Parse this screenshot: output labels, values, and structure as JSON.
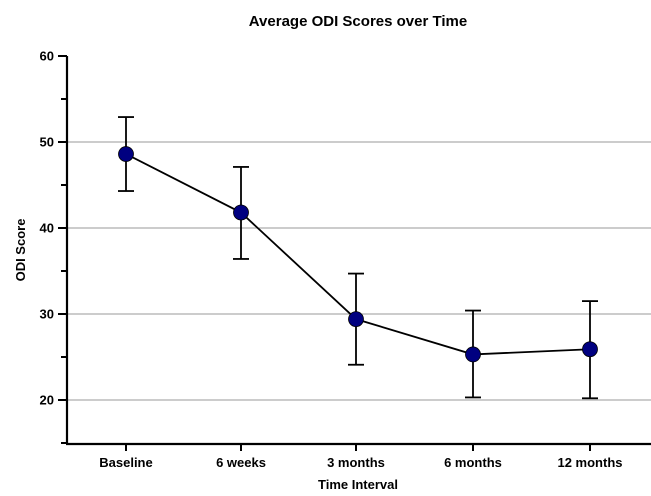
{
  "chart_data": {
    "type": "line",
    "title": "Average ODI Scores over Time",
    "xlabel": "Time Interval",
    "ylabel": "ODI Score",
    "categories": [
      "Baseline",
      "6 weeks",
      "3 months",
      "6 months",
      "12 months"
    ],
    "series": [
      {
        "values": [
          48.6,
          41.8,
          29.4,
          25.3,
          25.9
        ],
        "error_upper": [
          52.9,
          47.1,
          34.7,
          30.4,
          31.5
        ],
        "error_lower": [
          44.3,
          36.4,
          24.1,
          20.3,
          20.2
        ],
        "color": "#000080"
      }
    ],
    "ylim": [
      10,
      60
    ],
    "yticks": [
      20,
      30,
      40,
      50,
      60
    ],
    "grid": true,
    "legend": "none"
  }
}
